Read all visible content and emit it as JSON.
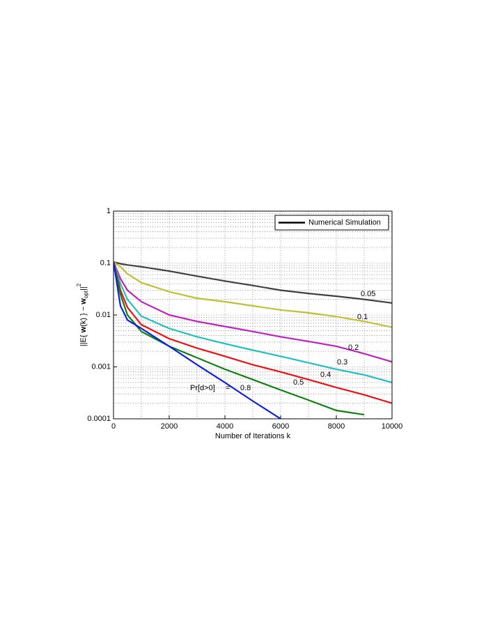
{
  "chart_data": {
    "type": "line",
    "xlabel": "Number of Iterations k",
    "ylabel": [
      "||E{ ",
      "w",
      "(k) } − ",
      "w",
      "opt",
      "||",
      "2"
    ],
    "x": [
      0,
      250,
      500,
      1000,
      2000,
      3000,
      4000,
      5000,
      6000,
      7000,
      8000,
      9000,
      10000
    ],
    "series": [
      {
        "name": "0.05",
        "color": "#404040",
        "values": [
          0.105,
          0.097,
          0.092,
          0.085,
          0.07,
          0.056,
          0.045,
          0.037,
          0.03,
          0.026,
          0.023,
          0.02,
          0.017
        ]
      },
      {
        "name": "0.1",
        "color": "#c0c030",
        "values": [
          0.105,
          0.085,
          0.062,
          0.042,
          0.028,
          0.021,
          0.018,
          0.015,
          0.0125,
          0.011,
          0.0093,
          0.0075,
          0.0058
        ]
      },
      {
        "name": "0.2",
        "color": "#c020c0",
        "values": [
          0.105,
          0.05,
          0.03,
          0.018,
          0.01,
          0.0075,
          0.006,
          0.0048,
          0.0038,
          0.0031,
          0.0025,
          0.0018,
          0.00125
        ]
      },
      {
        "name": "0.3",
        "color": "#20c0c0",
        "values": [
          0.105,
          0.04,
          0.02,
          0.0095,
          0.0055,
          0.0038,
          0.0028,
          0.0021,
          0.0016,
          0.0012,
          0.0009,
          0.0007,
          0.0005
        ]
      },
      {
        "name": "0.4",
        "color": "#ee1010",
        "values": [
          0.105,
          0.03,
          0.014,
          0.0065,
          0.0035,
          0.0023,
          0.0016,
          0.0011,
          0.0008,
          0.00057,
          0.0004,
          0.00029,
          0.0002
        ]
      },
      {
        "name": "0.5",
        "color": "#108010",
        "values": [
          0.105,
          0.025,
          0.01,
          0.0048,
          0.0025,
          0.0015,
          0.0009,
          0.00057,
          0.00036,
          0.00023,
          0.000145,
          0.00012,
          null
        ]
      },
      {
        "name": "0.8",
        "color": "#1020e0",
        "values": [
          0.105,
          0.015,
          0.008,
          0.0055,
          0.0025,
          0.0011,
          0.0005,
          0.00022,
          0.0001,
          null,
          null,
          null,
          null
        ]
      }
    ],
    "annotations": [
      "Pr[d>0]",
      "="
    ],
    "legend": {
      "label": "Numerical Simulation",
      "color": "#000000",
      "corner": "upper right"
    },
    "xlim": [
      0,
      10000
    ],
    "xticks": [
      0,
      2000,
      4000,
      6000,
      8000,
      10000
    ],
    "ylim": [
      0.0001,
      1
    ],
    "yticks": [
      0.0001,
      0.001,
      0.01,
      0.1,
      1
    ],
    "ylog": true,
    "grid": true,
    "minor_grid": true
  }
}
